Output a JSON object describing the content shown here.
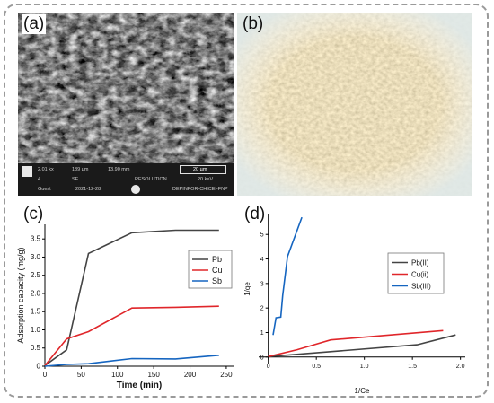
{
  "panels": {
    "a": {
      "label": "(a)",
      "scalebar": "20 µm",
      "info_row1": [
        "2.01 kx",
        "139 µm",
        "13.90 mm"
      ],
      "info_row2": [
        "4",
        "SE",
        "RESOLUTION",
        "20 keV"
      ],
      "info_row3": [
        "Guest",
        "2021-12-28",
        "DEPINFOR-CHICEI-FNP"
      ]
    },
    "b": {
      "label": "(b)"
    },
    "c": {
      "label": "(c)"
    },
    "d": {
      "label": "(d)"
    }
  },
  "chart_data": [
    {
      "type": "line",
      "panel": "c",
      "xlabel": "Time (min)",
      "ylabel": "Adsorption capacity (mg/g)",
      "xlim": [
        0,
        260
      ],
      "ylim": [
        0,
        3.9
      ],
      "xticks": [
        "0",
        "50",
        "100",
        "150",
        "200",
        "250"
      ],
      "yticks": [
        "0",
        "0.5",
        "1.0",
        "1.5",
        "2.0",
        "2.5",
        "3.0",
        "3.5"
      ],
      "grid": false,
      "legend_position": "right",
      "series": [
        {
          "name": "Pb",
          "color": "#444444",
          "x": [
            0,
            30,
            60,
            120,
            180,
            240
          ],
          "y": [
            0.02,
            0.45,
            3.1,
            3.67,
            3.74,
            3.74
          ]
        },
        {
          "name": "Cu",
          "color": "#e0262a",
          "x": [
            0,
            30,
            60,
            120,
            180,
            240
          ],
          "y": [
            0.02,
            0.75,
            0.95,
            1.6,
            1.62,
            1.65
          ]
        },
        {
          "name": "Sb",
          "color": "#1565c0",
          "x": [
            0,
            30,
            60,
            120,
            180,
            240
          ],
          "y": [
            0.0,
            0.05,
            0.07,
            0.21,
            0.2,
            0.3
          ]
        }
      ]
    },
    {
      "type": "line",
      "panel": "d",
      "xlabel": "1/Ce",
      "ylabel": "1/qe",
      "xlim": [
        -0.1,
        2.05
      ],
      "ylim": [
        -0.3,
        5.85
      ],
      "xticks": [
        "0",
        "0.5",
        "1.0",
        "1.5",
        "2.0"
      ],
      "yticks": [
        "0",
        "1",
        "2",
        "3",
        "4",
        "5"
      ],
      "grid": false,
      "legend_position": "right",
      "series": [
        {
          "name": "Pb(II)",
          "color": "#444444",
          "x": [
            0.0,
            1.55,
            1.95
          ],
          "y": [
            0.02,
            0.5,
            0.9
          ]
        },
        {
          "name": "Cu(ii)",
          "color": "#e0262a",
          "x": [
            0.0,
            0.3,
            0.65,
            1.82
          ],
          "y": [
            0.02,
            0.3,
            0.7,
            1.08
          ]
        },
        {
          "name": "Sb(III)",
          "color": "#1565c0",
          "x": [
            0.05,
            0.08,
            0.13,
            0.15,
            0.2,
            0.35
          ],
          "y": [
            0.9,
            1.6,
            1.63,
            2.5,
            4.1,
            5.7
          ]
        }
      ]
    }
  ]
}
